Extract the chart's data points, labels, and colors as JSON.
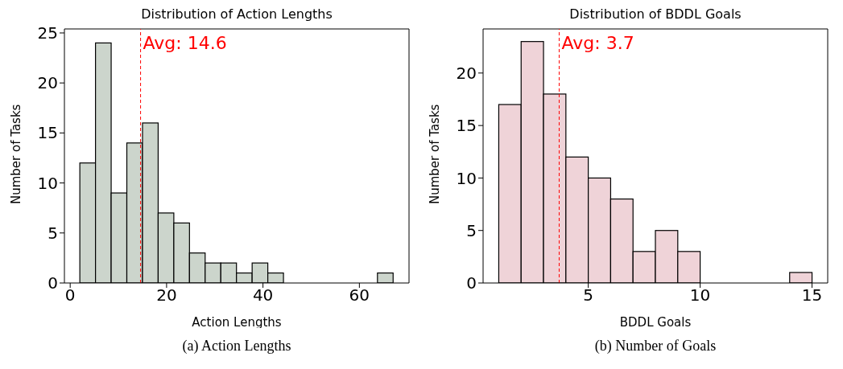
{
  "chart_data": [
    {
      "type": "histogram",
      "title": "Distribution of Action Lengths",
      "xlabel": "Action Lengths",
      "ylabel": "Number of Tasks",
      "bins": [
        2,
        5.25,
        8.5,
        11.75,
        15,
        18.25,
        21.5,
        24.75,
        28,
        31.25,
        34.5,
        37.75,
        41,
        44.25,
        47.5,
        50.75,
        54,
        57.25,
        60.5,
        63.75,
        67
      ],
      "values": [
        12,
        24,
        9,
        14,
        16,
        7,
        6,
        3,
        2,
        2,
        1,
        2,
        1,
        0,
        0,
        0,
        0,
        0,
        0,
        1
      ],
      "color": "#ccd5cc",
      "xlim": [
        -1.2,
        70.3
      ],
      "xticks": [
        0,
        20,
        40,
        60
      ],
      "ylim": [
        0,
        25.4
      ],
      "yticks": [
        0,
        5,
        10,
        15,
        20,
        25
      ],
      "ref_lines": [
        {
          "axis": "x",
          "value": 14.6,
          "label": "Avg: 14.6",
          "color": "#ff0000",
          "line_style": "dashed"
        }
      ],
      "annotations": [
        "(a) Action Lengths"
      ]
    },
    {
      "type": "histogram",
      "title": "Distribution of BDDL Goals",
      "xlabel": "BDDL Goals",
      "ylabel": "Number of Tasks",
      "bins": [
        1,
        2,
        3,
        4,
        5,
        6,
        7,
        8,
        9,
        10,
        11,
        12,
        13,
        14,
        15
      ],
      "values": [
        17,
        23,
        18,
        12,
        10,
        8,
        3,
        5,
        3,
        0,
        0,
        0,
        0,
        1
      ],
      "color": "#efd3d8",
      "xlim": [
        0.3,
        15.7
      ],
      "xticks": [
        5,
        10,
        15
      ],
      "ylim": [
        0,
        24.2
      ],
      "yticks": [
        0,
        5,
        10,
        15,
        20
      ],
      "ref_lines": [
        {
          "axis": "x",
          "value": 3.7,
          "label": "Avg: 3.7",
          "color": "#ff0000",
          "line_style": "dashed"
        }
      ],
      "annotations": [
        "(b) Number of Goals"
      ]
    }
  ]
}
